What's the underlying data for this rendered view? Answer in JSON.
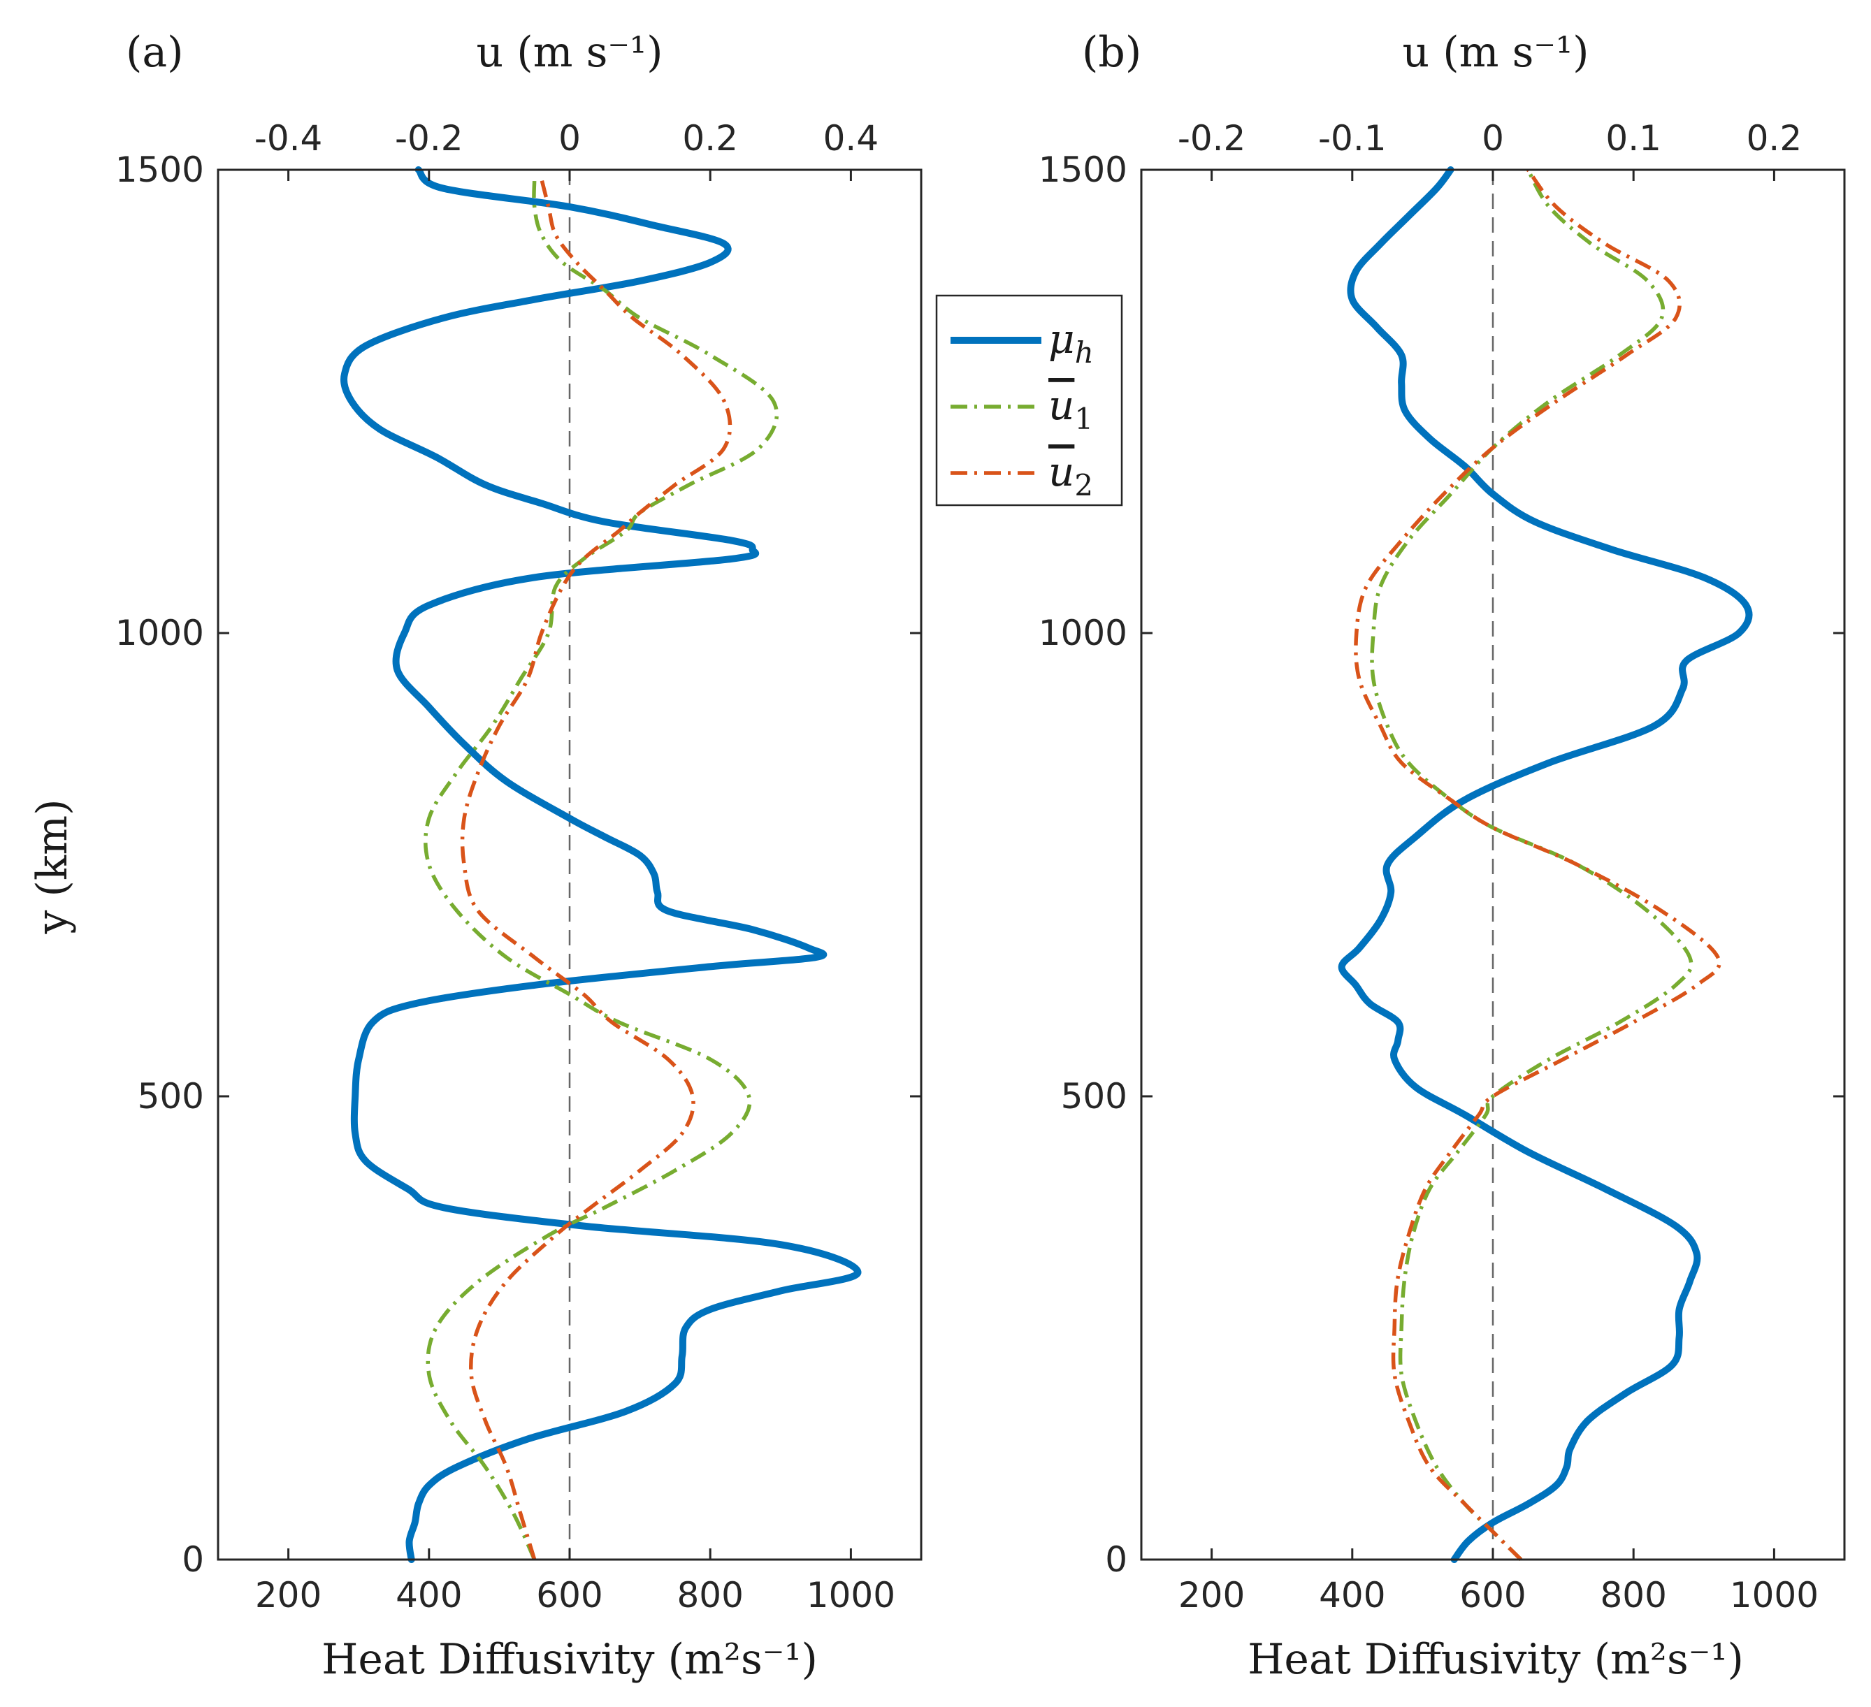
{
  "colors": {
    "mu_h": "#0072BD",
    "u1": "#77AC30",
    "u2": "#D95319",
    "axis": "#262626",
    "zero_line": "#666666"
  },
  "legend": {
    "entries": [
      {
        "key": "mu_h",
        "label": "μh",
        "base": "μ",
        "sub": "h",
        "overline": false
      },
      {
        "key": "u1",
        "label": "u1",
        "base": "u",
        "sub": "1",
        "overline": true
      },
      {
        "key": "u2",
        "label": "u2",
        "base": "u",
        "sub": "2",
        "overline": true
      }
    ]
  },
  "chart_data": [
    {
      "type": "line",
      "panel_label": "(a)",
      "ylabel": "y (km)",
      "xlabel_bottom": "Heat Diffusivity (m²s⁻¹)",
      "xlabel_top": "u (m s⁻¹)",
      "ylim": [
        0,
        1500
      ],
      "xlim_bottom": [
        100,
        1100
      ],
      "xlim_top": [
        -0.5,
        0.5
      ],
      "yticks": [
        "0",
        "500",
        "1000",
        "1500"
      ],
      "xticks_bottom": [
        "200",
        "400",
        "600",
        "800",
        "1000"
      ],
      "xticks_top": [
        "-0.4",
        "-0.2",
        "0",
        "0.2",
        "0.4"
      ],
      "zero_line_u": 0,
      "series": [
        {
          "name": "μh",
          "axis": "bottom",
          "style": "solid",
          "y": [
            0,
            20,
            40,
            60,
            80,
            100,
            130,
            160,
            190,
            220,
            250,
            270,
            290,
            310,
            340,
            360,
            380,
            400,
            430,
            460,
            500,
            540,
            580,
            600,
            620,
            640,
            650,
            660,
            680,
            700,
            720,
            740,
            760,
            780,
            800,
            840,
            880,
            920,
            960,
            1000,
            1030,
            1060,
            1080,
            1090,
            1100,
            1120,
            1140,
            1160,
            1190,
            1220,
            1250,
            1280,
            1310,
            1340,
            1360,
            1380,
            1400,
            1420,
            1440,
            1460,
            1480,
            1500
          ],
          "values": [
            375,
            372,
            380,
            385,
            400,
            440,
            540,
            680,
            750,
            760,
            765,
            800,
            900,
            1010,
            900,
            620,
            420,
            370,
            310,
            295,
            295,
            300,
            320,
            380,
            550,
            800,
            950,
            940,
            860,
            740,
            725,
            720,
            700,
            650,
            600,
            510,
            450,
            400,
            355,
            365,
            400,
            550,
            830,
            860,
            830,
            650,
            560,
            480,
            410,
            330,
            290,
            280,
            310,
            420,
            550,
            700,
            800,
            820,
            720,
            600,
            420,
            385
          ]
        },
        {
          "name": "u1",
          "axis": "top",
          "style": "dashdot",
          "y": [
            0,
            50,
            100,
            150,
            200,
            250,
            300,
            350,
            380,
            420,
            460,
            500,
            540,
            580,
            610,
            650,
            700,
            750,
            800,
            850,
            900,
            950,
            1000,
            1050,
            1080,
            1110,
            1130,
            1160,
            1200,
            1250,
            1300,
            1340,
            1370,
            1400,
            1430,
            1460,
            1490
          ],
          "values": [
            -0.05,
            -0.08,
            -0.12,
            -0.17,
            -0.2,
            -0.19,
            -0.13,
            -0.03,
            0.05,
            0.15,
            0.23,
            0.255,
            0.2,
            0.07,
            0.0,
            -0.09,
            -0.16,
            -0.2,
            -0.2,
            -0.16,
            -0.11,
            -0.07,
            -0.03,
            -0.02,
            0.02,
            0.08,
            0.1,
            0.17,
            0.27,
            0.29,
            0.2,
            0.1,
            0.05,
            -0.01,
            -0.04,
            -0.05,
            -0.05
          ]
        },
        {
          "name": "u2",
          "axis": "top",
          "style": "dashdot",
          "y": [
            0,
            50,
            100,
            150,
            200,
            250,
            300,
            350,
            380,
            420,
            460,
            500,
            540,
            580,
            610,
            650,
            700,
            750,
            800,
            850,
            900,
            950,
            1000,
            1050,
            1080,
            1110,
            1130,
            1160,
            1200,
            1250,
            1300,
            1340,
            1370,
            1400,
            1430,
            1460,
            1490
          ],
          "values": [
            -0.05,
            -0.07,
            -0.09,
            -0.12,
            -0.14,
            -0.13,
            -0.09,
            -0.02,
            0.03,
            0.1,
            0.16,
            0.175,
            0.14,
            0.06,
            0.02,
            -0.05,
            -0.13,
            -0.15,
            -0.15,
            -0.13,
            -0.1,
            -0.06,
            -0.04,
            -0.01,
            0.02,
            0.07,
            0.1,
            0.15,
            0.22,
            0.22,
            0.16,
            0.09,
            0.05,
            0.01,
            -0.02,
            -0.03,
            -0.04
          ]
        }
      ]
    },
    {
      "type": "line",
      "panel_label": "(b)",
      "ylabel": "",
      "xlabel_bottom": "Heat Diffusivity (m²s⁻¹)",
      "xlabel_top": "u (m s⁻¹)",
      "ylim": [
        0,
        1500
      ],
      "xlim_bottom": [
        100,
        1100
      ],
      "xlim_top": [
        -0.25,
        0.25
      ],
      "yticks": [
        "0",
        "500",
        "1000",
        "1500"
      ],
      "xticks_bottom": [
        "200",
        "400",
        "600",
        "800",
        "1000"
      ],
      "xticks_top": [
        "-0.2",
        "-0.1",
        "0",
        "0.1",
        "0.2"
      ],
      "zero_line_u": 0,
      "series": [
        {
          "name": "μh",
          "axis": "bottom",
          "style": "solid",
          "y": [
            0,
            20,
            40,
            60,
            80,
            100,
            120,
            150,
            180,
            210,
            240,
            270,
            300,
            330,
            360,
            400,
            440,
            480,
            510,
            540,
            560,
            580,
            600,
            620,
            640,
            660,
            690,
            720,
            750,
            780,
            820,
            860,
            900,
            940,
            970,
            1000,
            1030,
            1060,
            1090,
            1120,
            1150,
            1180,
            1210,
            1240,
            1270,
            1300,
            1330,
            1360,
            1390,
            1420,
            1450,
            1480,
            1500
          ],
          "values": [
            545,
            565,
            600,
            650,
            690,
            705,
            710,
            735,
            790,
            855,
            865,
            865,
            880,
            890,
            860,
            760,
            650,
            560,
            490,
            460,
            465,
            465,
            425,
            405,
            385,
            410,
            440,
            455,
            450,
            490,
            560,
            680,
            830,
            870,
            875,
            950,
            960,
            900,
            770,
            660,
            600,
            560,
            510,
            475,
            470,
            470,
            435,
            400,
            405,
            440,
            480,
            520,
            540
          ]
        },
        {
          "name": "u1",
          "axis": "top",
          "style": "dashdot",
          "y": [
            0,
            30,
            60,
            100,
            150,
            200,
            250,
            300,
            350,
            400,
            440,
            480,
            500,
            540,
            580,
            620,
            650,
            700,
            750,
            790,
            820,
            860,
            900,
            950,
            1000,
            1050,
            1100,
            1150,
            1200,
            1250,
            1300,
            1340,
            1380,
            1420,
            1460,
            1500
          ],
          "values": [
            0.02,
            0.0,
            -0.02,
            -0.04,
            -0.055,
            -0.065,
            -0.065,
            -0.063,
            -0.057,
            -0.045,
            -0.025,
            -0.005,
            0.0,
            0.04,
            0.09,
            0.13,
            0.14,
            0.11,
            0.06,
            0.0,
            -0.03,
            -0.06,
            -0.075,
            -0.085,
            -0.085,
            -0.08,
            -0.06,
            -0.03,
            0.0,
            0.04,
            0.09,
            0.12,
            0.11,
            0.07,
            0.04,
            0.025
          ]
        },
        {
          "name": "u2",
          "axis": "top",
          "style": "dashdot",
          "y": [
            0,
            30,
            60,
            100,
            150,
            200,
            250,
            300,
            350,
            400,
            440,
            480,
            500,
            540,
            580,
            620,
            650,
            700,
            750,
            790,
            820,
            860,
            900,
            950,
            1000,
            1050,
            1100,
            1150,
            1200,
            1250,
            1300,
            1340,
            1380,
            1420,
            1460,
            1500
          ],
          "values": [
            0.02,
            0.0,
            -0.02,
            -0.045,
            -0.06,
            -0.07,
            -0.07,
            -0.068,
            -0.06,
            -0.048,
            -0.03,
            -0.01,
            0.0,
            0.05,
            0.1,
            0.145,
            0.16,
            0.12,
            0.06,
            0.0,
            -0.03,
            -0.065,
            -0.08,
            -0.095,
            -0.097,
            -0.09,
            -0.065,
            -0.035,
            0.0,
            0.045,
            0.095,
            0.13,
            0.125,
            0.08,
            0.045,
            0.025
          ]
        }
      ]
    }
  ]
}
